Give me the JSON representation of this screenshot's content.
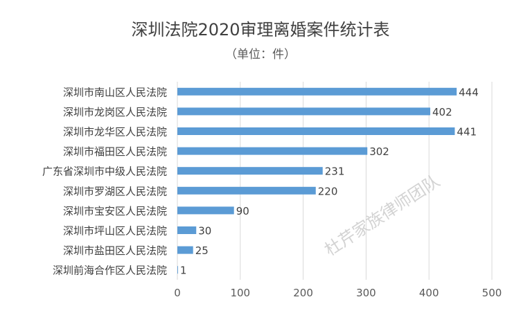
{
  "chart_data": {
    "type": "bar",
    "orientation": "horizontal",
    "title": "深圳法院2020审理离婚案件统计表",
    "subtitle": "（单位：件）",
    "categories": [
      "深圳市南山区人民法院",
      "深圳市龙岗区人民法院",
      "深圳市龙华区人民法院",
      "深圳市福田区人民法院",
      "广东省深圳市中级人民法院",
      "深圳市罗湖区人民法院",
      "深圳市宝安区人民法院",
      "深圳市坪山区人民法院",
      "深圳市盐田区人民法院",
      "深圳前海合作区人民法院"
    ],
    "values": [
      444,
      402,
      441,
      302,
      231,
      220,
      90,
      30,
      25,
      1
    ],
    "xlim": [
      0,
      500
    ],
    "xticks": [
      0,
      100,
      200,
      300,
      400,
      500
    ],
    "grid": "vertical",
    "bar_color": "#5B9BD5",
    "watermark": "杜芹家族律师团队"
  }
}
